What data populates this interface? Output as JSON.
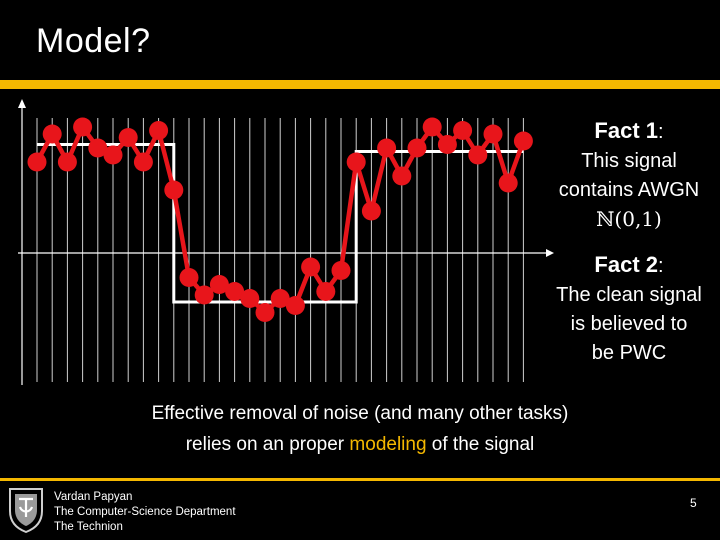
{
  "slide": {
    "title": "Model?",
    "fact1_title": "Fact 1",
    "fact1_colon": ":",
    "fact1_lines": [
      "This signal",
      "contains AWGN"
    ],
    "fact1_math": "ℕ(0,1)",
    "fact2_title": "Fact 2",
    "fact2_colon": ":",
    "fact2_lines": [
      "The clean signal",
      "is believed to",
      "be PWC"
    ],
    "caption_line1": "Effective removal of noise (and many other tasks)",
    "caption_line2_pre": "relies on an proper ",
    "caption_line2_highlight": "modeling",
    "caption_line2_post": " of the signal"
  },
  "footer": {
    "author": "Vardan Papyan",
    "department": "The Computer-Science Department",
    "institution": "The Technion",
    "page_number": "5"
  },
  "colors": {
    "accent": "#f5b800",
    "signal": "#e8151b",
    "background": "#000000"
  },
  "chart_data": {
    "type": "line",
    "noisy": [
      1.3,
      1.7,
      1.3,
      1.8,
      1.5,
      1.4,
      1.65,
      1.3,
      1.75,
      0.9,
      -0.35,
      -0.6,
      -0.45,
      -0.55,
      -0.65,
      -0.85,
      -0.65,
      -0.75,
      -0.2,
      -0.55,
      -0.25,
      1.3,
      0.6,
      1.5,
      1.1,
      1.5,
      1.8,
      1.55,
      1.75,
      1.4,
      1.7,
      1.0,
      1.6
    ],
    "clean_segments": [
      {
        "start": 0,
        "end": 9,
        "value": 1.55
      },
      {
        "start": 9,
        "end": 21,
        "value": -0.7
      },
      {
        "start": 21,
        "end": 32,
        "value": 1.45
      }
    ],
    "ylim": [
      -1,
      2
    ]
  }
}
